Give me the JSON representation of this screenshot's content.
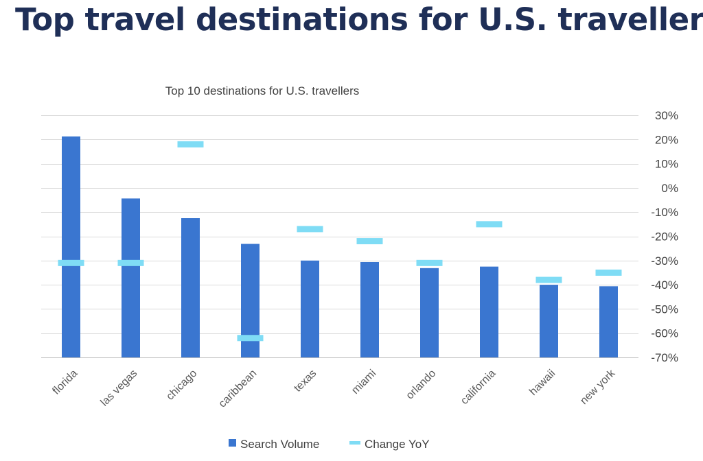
{
  "page": {
    "title": "Top travel destinations for U.S. travellers"
  },
  "chart_data": {
    "type": "bar",
    "title": "Top 10 destinations for U.S. travellers",
    "categories": [
      "florida",
      "las vegas",
      "chicago",
      "caribbean",
      "texas",
      "miami",
      "orlando",
      "california",
      "hawaii",
      "new york"
    ],
    "series": [
      {
        "name": "Search Volume",
        "type": "bar",
        "axis": "left",
        "color": "#3a76d0",
        "values": [
          7.3,
          5.25,
          4.6,
          3.75,
          3.2,
          3.15,
          2.95,
          3.0,
          2.4,
          2.35
        ]
      },
      {
        "name": "Change YoY",
        "type": "marker",
        "axis": "right",
        "color": "#7fdcf5",
        "values": [
          -31,
          -31,
          18,
          -62,
          -17,
          -22,
          -31,
          -15,
          -38,
          -35
        ]
      }
    ],
    "left_axis": {
      "ylim": [
        0,
        8
      ],
      "visible": false
    },
    "right_axis": {
      "ylim": [
        -70,
        30
      ],
      "ticks": [
        30,
        20,
        10,
        0,
        -10,
        -20,
        -30,
        -40,
        -50,
        -60,
        -70
      ],
      "tick_labels": [
        "30%",
        "20%",
        "10%",
        "0%",
        "-10%",
        "-20%",
        "-30%",
        "-40%",
        "-50%",
        "-60%",
        "-70%"
      ]
    },
    "grid": true,
    "legend": {
      "position": "bottom",
      "entries": [
        "Search Volume",
        "Change YoY"
      ]
    }
  }
}
